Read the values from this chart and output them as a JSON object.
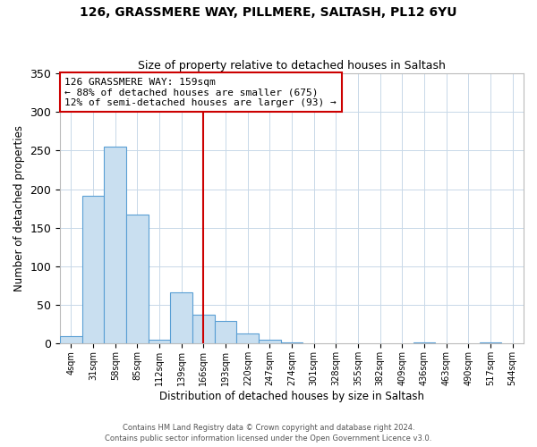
{
  "title": "126, GRASSMERE WAY, PILLMERE, SALTASH, PL12 6YU",
  "subtitle": "Size of property relative to detached houses in Saltash",
  "xlabel": "Distribution of detached houses by size in Saltash",
  "ylabel": "Number of detached properties",
  "footer_line1": "Contains HM Land Registry data © Crown copyright and database right 2024.",
  "footer_line2": "Contains public sector information licensed under the Open Government Licence v3.0.",
  "bin_labels": [
    "4sqm",
    "31sqm",
    "58sqm",
    "85sqm",
    "112sqm",
    "139sqm",
    "166sqm",
    "193sqm",
    "220sqm",
    "247sqm",
    "274sqm",
    "301sqm",
    "328sqm",
    "355sqm",
    "382sqm",
    "409sqm",
    "436sqm",
    "463sqm",
    "490sqm",
    "517sqm",
    "544sqm"
  ],
  "bar_values": [
    10,
    191,
    255,
    167,
    5,
    67,
    37,
    29,
    13,
    5,
    2,
    0,
    0,
    0,
    0,
    0,
    2,
    0,
    0,
    2,
    0
  ],
  "bar_color": "#c9dff0",
  "bar_edge_color": "#5a9fd4",
  "annotation_box_text_line1": "126 GRASSMERE WAY: 159sqm",
  "annotation_box_text_line2": "← 88% of detached houses are smaller (675)",
  "annotation_box_text_line3": "12% of semi-detached houses are larger (93) →",
  "ref_line_index": 6,
  "ref_line_color": "#cc0000",
  "ylim": [
    0,
    350
  ],
  "yticks": [
    0,
    50,
    100,
    150,
    200,
    250,
    300,
    350
  ],
  "background_color": "#ffffff",
  "grid_color": "#c8d8e8",
  "title_fontsize": 10,
  "subtitle_fontsize": 9
}
